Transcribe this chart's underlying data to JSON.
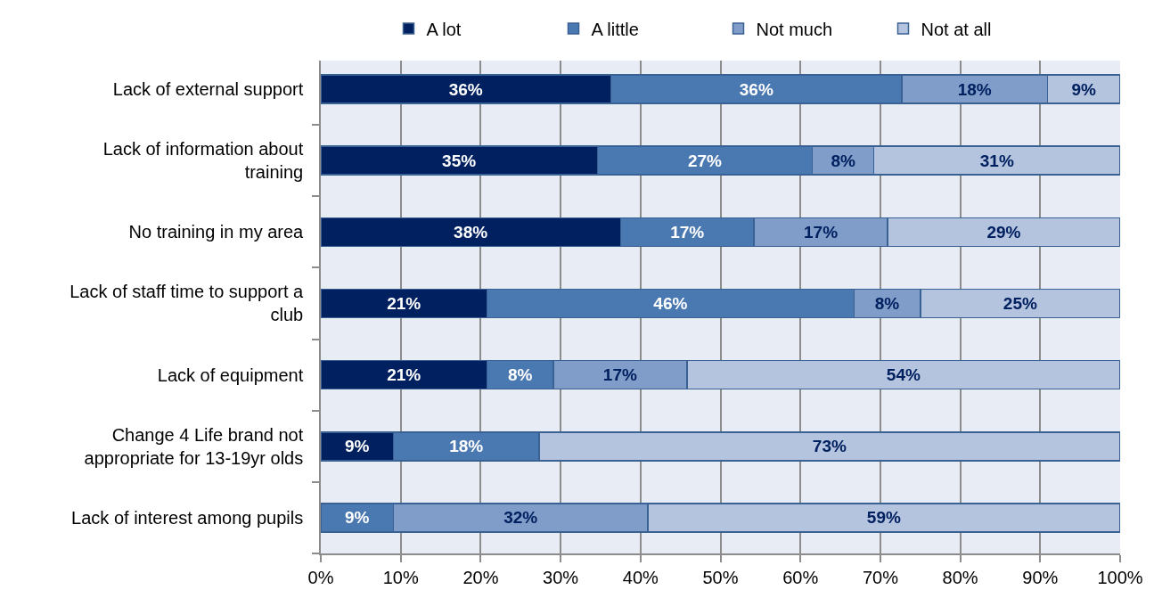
{
  "chart_data": {
    "type": "bar",
    "orientation": "horizontal",
    "stacked": true,
    "categories": [
      "Lack of external support",
      "Lack of information about training",
      "No training in my area",
      "Lack of staff time to support a club",
      "Lack of equipment",
      "Change 4 Life brand not appropriate for 13-19yr olds",
      "Lack of interest among pupils"
    ],
    "series": [
      {
        "name": "A lot",
        "color": "#002060",
        "values": [
          36.3,
          34.6,
          37.5,
          20.8,
          20.8,
          9.1,
          null
        ],
        "value_labels": [
          "36%",
          "35%",
          "38%",
          "21%",
          "21%",
          "9%",
          null
        ]
      },
      {
        "name": "A little",
        "color": "#4a78b0",
        "values": [
          36.4,
          26.9,
          16.7,
          45.9,
          8.3,
          18.2,
          9.1
        ],
        "value_labels": [
          "36%",
          "27%",
          "17%",
          "46%",
          "8%",
          "18%",
          "9%"
        ]
      },
      {
        "name": "Not much",
        "color": "#7f9dc8",
        "values": [
          18.2,
          7.7,
          16.7,
          8.3,
          16.7,
          null,
          31.8
        ],
        "value_labels": [
          "18%",
          "8%",
          "17%",
          "8%",
          "17%",
          null,
          "32%"
        ]
      },
      {
        "name": "Not at all",
        "color": "#b4c3de",
        "values": [
          9.1,
          30.8,
          29.1,
          25.0,
          54.2,
          72.7,
          59.1
        ],
        "value_labels": [
          "9%",
          "31%",
          "29%",
          "25%",
          "54%",
          "73%",
          "59%"
        ]
      }
    ],
    "xlim": [
      0,
      100
    ],
    "xticks": [
      {
        "value": 0,
        "label": "0%"
      },
      {
        "value": 10,
        "label": "10%"
      },
      {
        "value": 20,
        "label": "20%"
      },
      {
        "value": 30,
        "label": "30%"
      },
      {
        "value": 40,
        "label": "40%"
      },
      {
        "value": 50,
        "label": "50%"
      },
      {
        "value": 60,
        "label": "60%"
      },
      {
        "value": 70,
        "label": "70%"
      },
      {
        "value": 80,
        "label": "80%"
      },
      {
        "value": 90,
        "label": "90%"
      },
      {
        "value": 100,
        "label": "100%"
      }
    ],
    "grid": "x",
    "legend": "top"
  }
}
